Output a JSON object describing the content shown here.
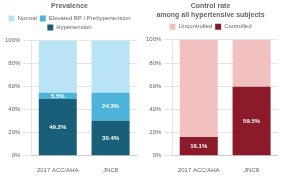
{
  "chart_data": [
    {
      "type": "bar",
      "title": "Prevalence",
      "categories": [
        "2017 ACC/AHA",
        "JNC8"
      ],
      "stacked": true,
      "series": [
        {
          "name": "Hypertension",
          "color": "#1a5f7a",
          "values": [
            49.2,
            30.4
          ],
          "data_labels": true,
          "value_labels": [
            "49.2%",
            "30.4%"
          ]
        },
        {
          "name": "Elevated BP / Prehypertension",
          "color": "#4db3d9",
          "values": [
            5.5,
            24.3
          ],
          "data_labels": true,
          "value_labels": [
            "5.5%",
            "24.3%"
          ]
        },
        {
          "name": "Normal",
          "color": "#b8e4f5",
          "values": [
            45.2,
            45.2
          ]
        }
      ],
      "ylim": [
        0,
        100
      ],
      "yticks": [
        {
          "value": 0,
          "label": "0%"
        },
        {
          "value": 20,
          "label": "20%"
        },
        {
          "value": 40,
          "label": "40%"
        },
        {
          "value": 60,
          "label": "60%"
        },
        {
          "value": 80,
          "label": "80%"
        },
        {
          "value": 100,
          "label": "100%"
        }
      ],
      "grid": true,
      "legend": "top"
    },
    {
      "type": "bar",
      "title": "Control rate\namong all hypertensive subjects",
      "categories": [
        "2017 ACC/AHA",
        "JNC8"
      ],
      "stacked": true,
      "series": [
        {
          "name": "Controlled",
          "color": "#8b1a2a",
          "values": [
            16.1,
            59.5
          ],
          "data_labels": true,
          "value_labels": [
            "16.1%",
            "59.5%"
          ]
        },
        {
          "name": "Uncontrolled",
          "color": "#f2c0be",
          "values": [
            83.9,
            40.5
          ]
        }
      ],
      "ylim": [
        0,
        100
      ],
      "yticks": [
        {
          "value": 0,
          "label": "0%"
        },
        {
          "value": 20,
          "label": "20%"
        },
        {
          "value": 40,
          "label": "40%"
        },
        {
          "value": 60,
          "label": "60%"
        },
        {
          "value": 80,
          "label": "80%"
        },
        {
          "value": 100,
          "label": "100%"
        }
      ],
      "grid": true,
      "legend": "top"
    }
  ]
}
